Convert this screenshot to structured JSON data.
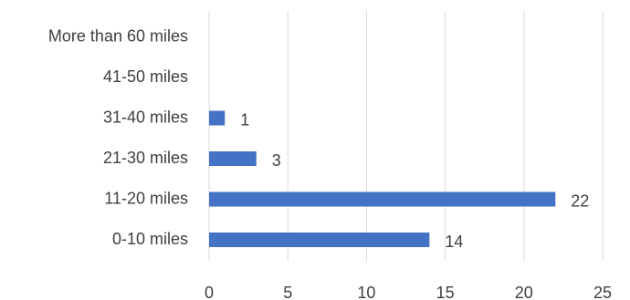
{
  "chart_data": {
    "type": "bar",
    "orientation": "horizontal",
    "categories": [
      "0-10 miles",
      "11-20 miles",
      "21-30 miles",
      "31-40 miles",
      "41-50 miles",
      "More than 60 miles"
    ],
    "values": [
      14,
      22,
      3,
      1,
      null,
      null
    ],
    "data_labels": [
      "14",
      "22",
      "3",
      "1",
      "",
      ""
    ],
    "xlim": [
      0,
      25
    ],
    "x_ticks": [
      0,
      5,
      10,
      15,
      20,
      25
    ],
    "grid": true,
    "legend": "none",
    "title": "",
    "xlabel": "",
    "ylabel": "",
    "bar_color": "#4472c4",
    "grid_color": "#d9d9d9",
    "text_color": "#404040"
  }
}
